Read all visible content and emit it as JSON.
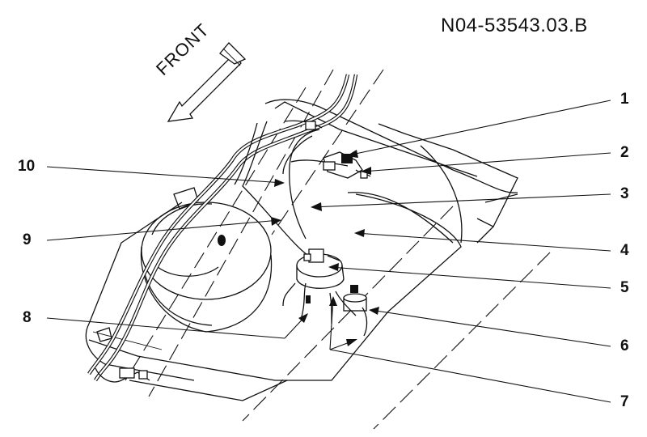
{
  "document_id": "N04-53543.03.B",
  "front_label": "FRONT",
  "callouts": [
    "1",
    "2",
    "3",
    "4",
    "5",
    "6",
    "7",
    "8",
    "9",
    "10"
  ]
}
